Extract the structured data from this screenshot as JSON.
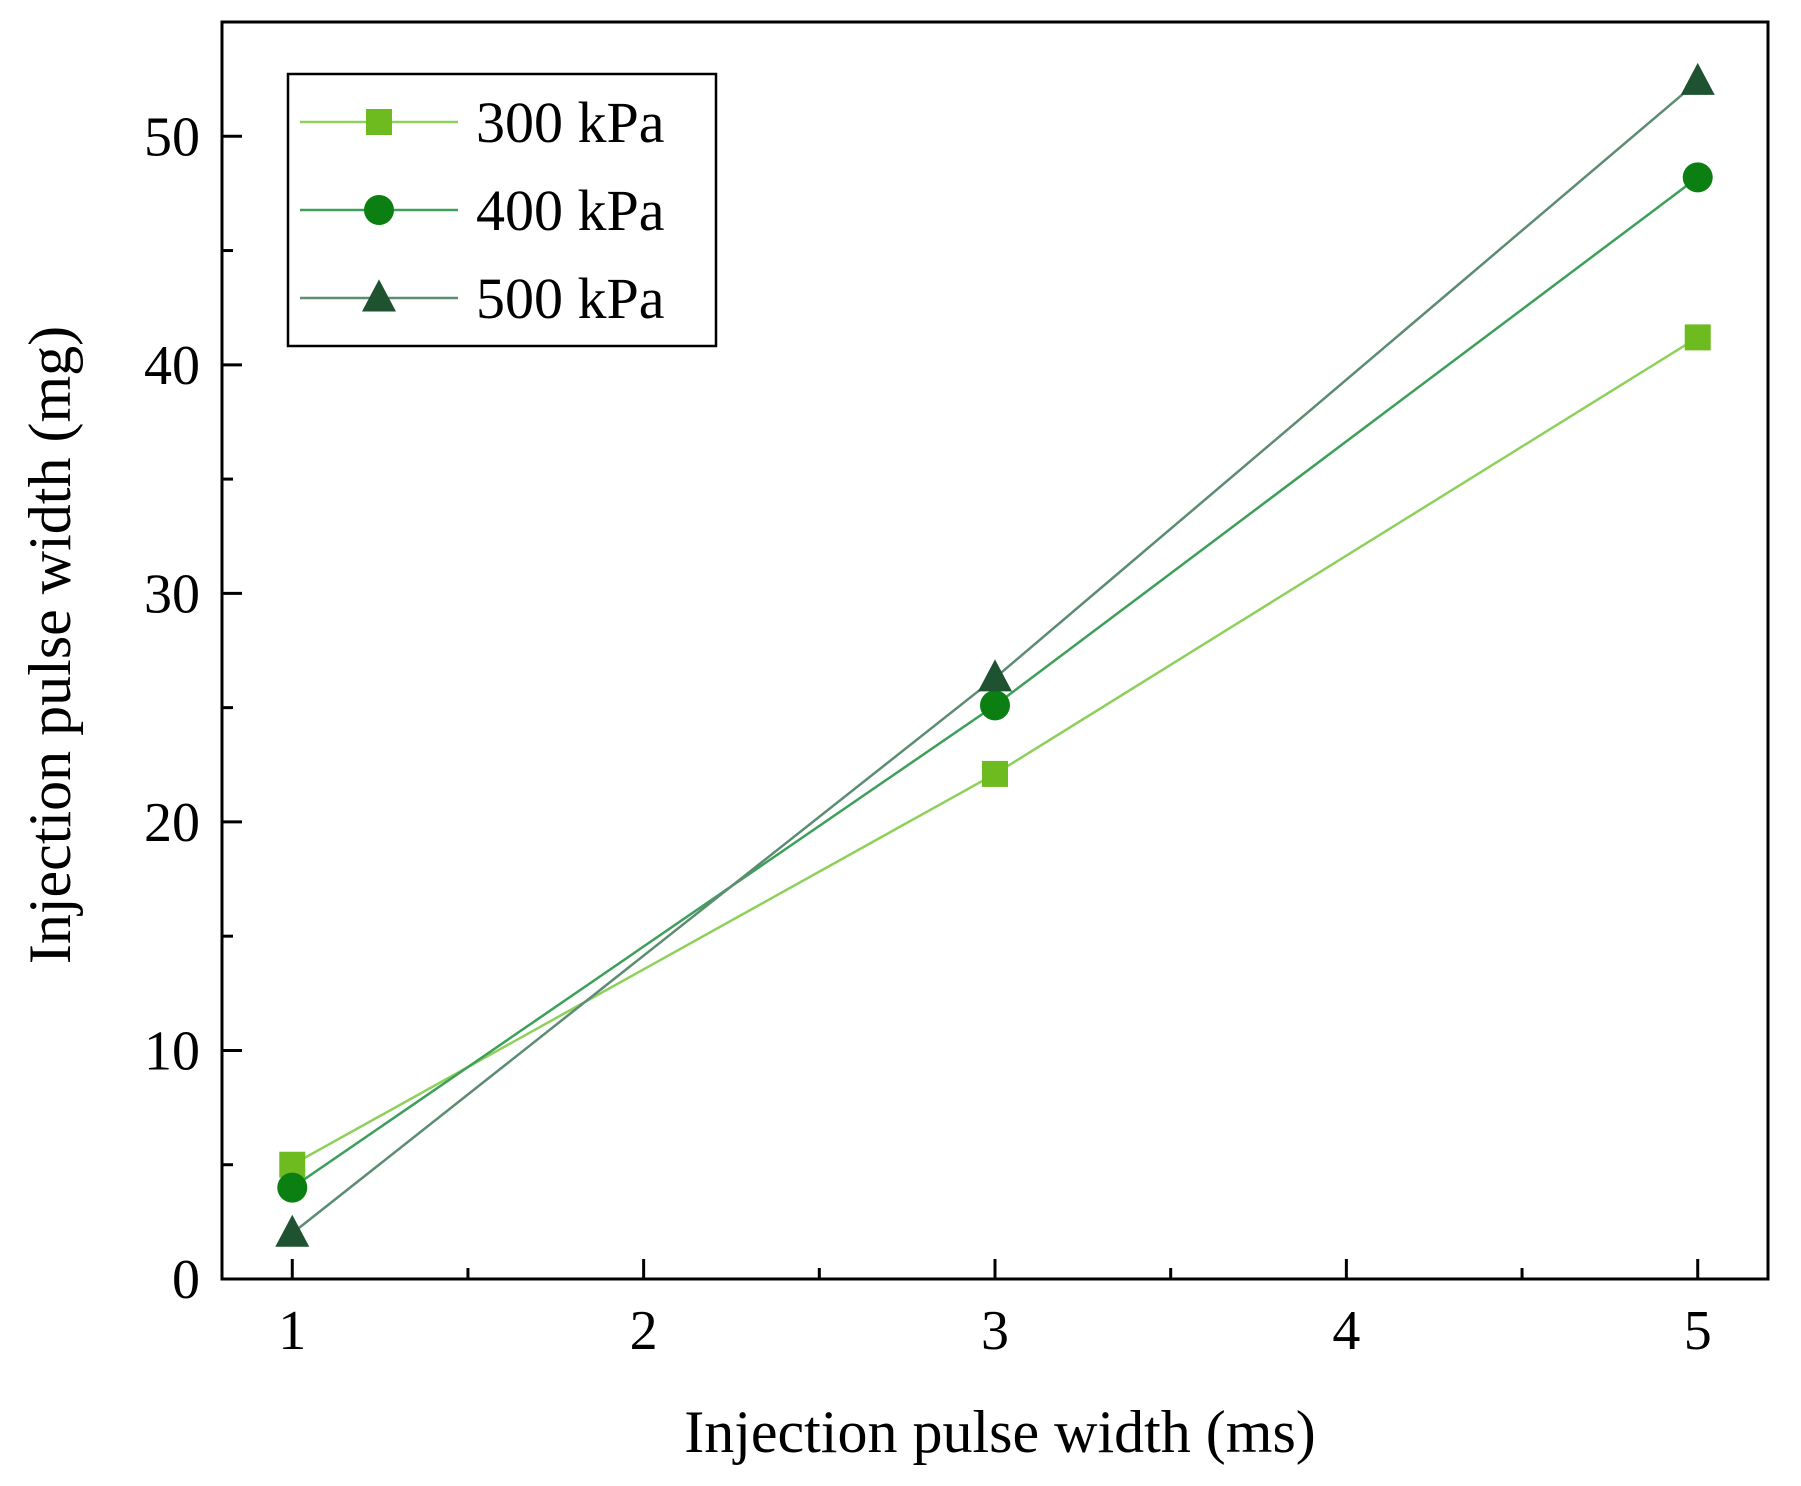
{
  "chart_data": {
    "type": "line",
    "title": "",
    "xlabel": "Injection pulse width (ms)",
    "ylabel": "Injection pulse width (mg)",
    "x": [
      1,
      3,
      5
    ],
    "xlim": [
      0.8,
      5.2
    ],
    "ylim": [
      0,
      55
    ],
    "xticks": [
      "1",
      "2",
      "3",
      "4",
      "5"
    ],
    "yticks": [
      "0",
      "10",
      "20",
      "30",
      "40",
      "50"
    ],
    "grid": false,
    "legend_position": "top-left",
    "series": [
      {
        "name": "300 kPa",
        "values": [
          5.0,
          22.1,
          41.2
        ],
        "marker": "square",
        "color": "#6dbb1e",
        "line_color": "#8ed05a"
      },
      {
        "name": "400 kPa",
        "values": [
          4.0,
          25.1,
          48.2
        ],
        "marker": "circle",
        "color": "#0b7f12",
        "line_color": "#3da05a"
      },
      {
        "name": "500 kPa",
        "values": [
          2.0,
          26.3,
          52.4
        ],
        "marker": "triangle",
        "color": "#1e5230",
        "line_color": "#5c8c72"
      }
    ]
  }
}
